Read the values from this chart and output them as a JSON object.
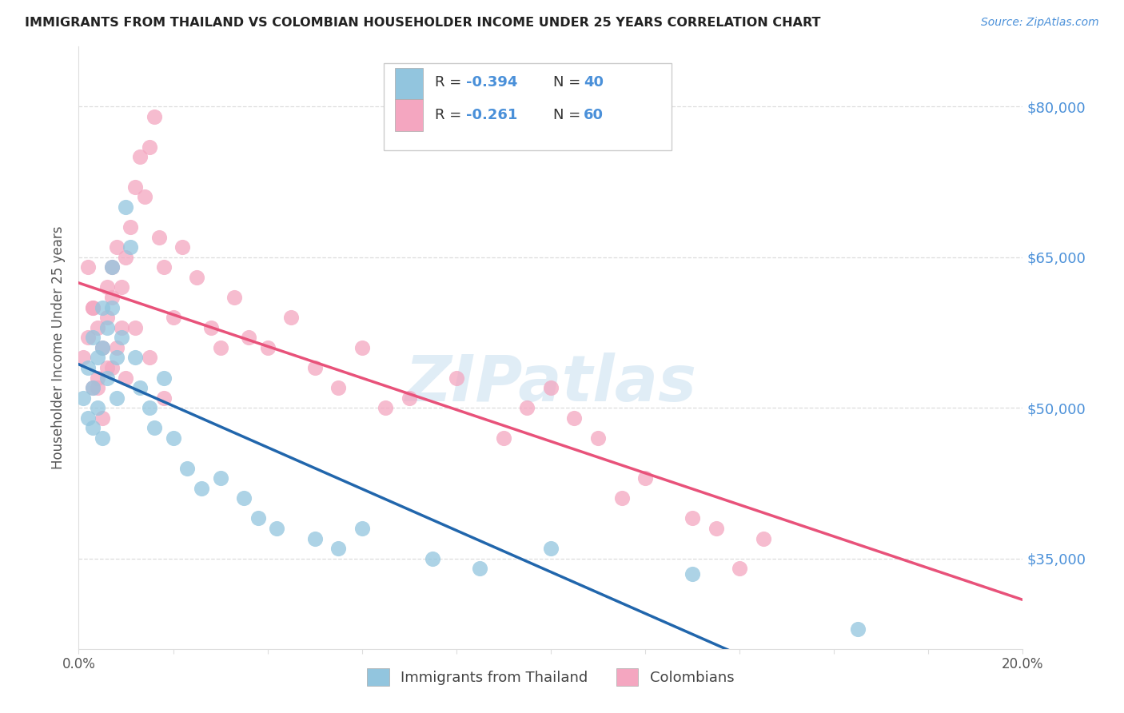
{
  "title": "IMMIGRANTS FROM THAILAND VS COLOMBIAN HOUSEHOLDER INCOME UNDER 25 YEARS CORRELATION CHART",
  "source": "Source: ZipAtlas.com",
  "ylabel": "Householder Income Under 25 years",
  "yticks": [
    35000,
    50000,
    65000,
    80000
  ],
  "ytick_labels": [
    "$35,000",
    "$50,000",
    "$65,000",
    "$80,000"
  ],
  "xmin": 0.0,
  "xmax": 0.2,
  "ymin": 26000,
  "ymax": 86000,
  "thailand_color": "#92c5de",
  "colombian_color": "#f4a6c0",
  "thailand_line_color": "#2166ac",
  "colombian_line_color": "#e8527a",
  "watermark_color": "#c8dff0",
  "title_color": "#222222",
  "source_color": "#4a90d9",
  "axis_label_color": "#555555",
  "right_tick_color": "#4a90d9",
  "legend_text_color": "#333333",
  "legend_value_color": "#4a90d9",
  "grid_color": "#dddddd",
  "bottom_legend_color": "#444444",
  "thailand_x": [
    0.001,
    0.002,
    0.002,
    0.003,
    0.003,
    0.003,
    0.004,
    0.004,
    0.005,
    0.005,
    0.005,
    0.006,
    0.006,
    0.007,
    0.007,
    0.008,
    0.008,
    0.009,
    0.01,
    0.011,
    0.012,
    0.013,
    0.015,
    0.016,
    0.018,
    0.02,
    0.023,
    0.026,
    0.03,
    0.035,
    0.038,
    0.042,
    0.05,
    0.055,
    0.06,
    0.075,
    0.085,
    0.1,
    0.13,
    0.165
  ],
  "thailand_y": [
    51000,
    54000,
    49000,
    57000,
    52000,
    48000,
    55000,
    50000,
    60000,
    56000,
    47000,
    58000,
    53000,
    64000,
    60000,
    55000,
    51000,
    57000,
    70000,
    66000,
    55000,
    52000,
    50000,
    48000,
    53000,
    47000,
    44000,
    42000,
    43000,
    41000,
    39000,
    38000,
    37000,
    36000,
    38000,
    35000,
    34000,
    36000,
    33500,
    28000
  ],
  "colombian_x": [
    0.001,
    0.002,
    0.003,
    0.003,
    0.004,
    0.004,
    0.005,
    0.005,
    0.006,
    0.006,
    0.007,
    0.007,
    0.008,
    0.009,
    0.009,
    0.01,
    0.011,
    0.012,
    0.013,
    0.014,
    0.015,
    0.016,
    0.017,
    0.018,
    0.02,
    0.022,
    0.025,
    0.028,
    0.03,
    0.033,
    0.036,
    0.04,
    0.045,
    0.05,
    0.055,
    0.06,
    0.065,
    0.07,
    0.08,
    0.09,
    0.095,
    0.1,
    0.105,
    0.11,
    0.115,
    0.12,
    0.13,
    0.135,
    0.14,
    0.145,
    0.01,
    0.012,
    0.015,
    0.018,
    0.008,
    0.006,
    0.004,
    0.003,
    0.002,
    0.007
  ],
  "colombian_y": [
    55000,
    57000,
    52000,
    60000,
    53000,
    58000,
    49000,
    56000,
    54000,
    62000,
    64000,
    61000,
    66000,
    62000,
    58000,
    65000,
    68000,
    72000,
    75000,
    71000,
    76000,
    79000,
    67000,
    64000,
    59000,
    66000,
    63000,
    58000,
    56000,
    61000,
    57000,
    56000,
    59000,
    54000,
    52000,
    56000,
    50000,
    51000,
    53000,
    47000,
    50000,
    52000,
    49000,
    47000,
    41000,
    43000,
    39000,
    38000,
    34000,
    37000,
    53000,
    58000,
    55000,
    51000,
    56000,
    59000,
    52000,
    60000,
    64000,
    54000
  ]
}
